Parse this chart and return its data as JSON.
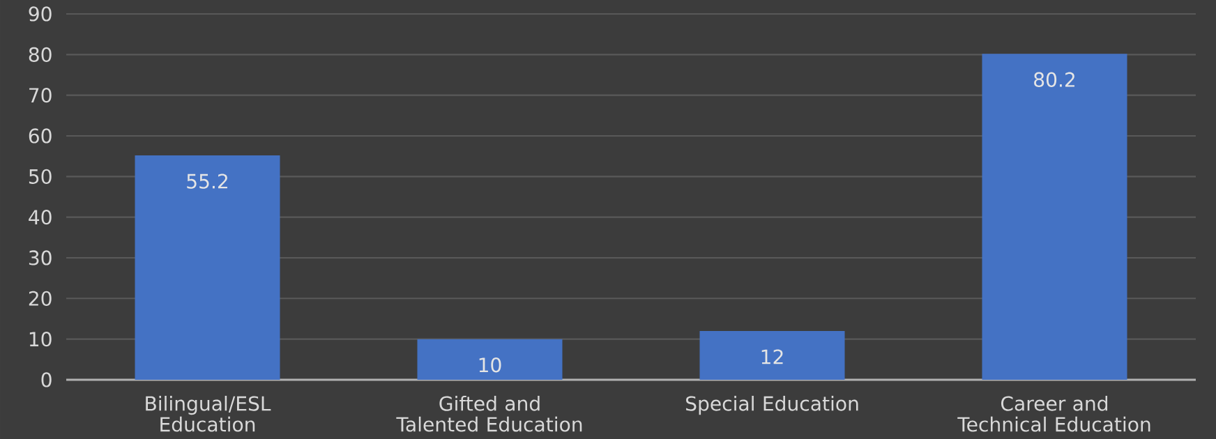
{
  "chart_data": {
    "type": "bar",
    "categories": [
      "Bilingual/ESL Education",
      "Gifted and Talented Education",
      "Special Education",
      "Career and Technical Education"
    ],
    "values": [
      55.2,
      10,
      12,
      80.2
    ],
    "color": "#4472c4",
    "ylim": [
      0,
      90
    ],
    "yticks": [
      0,
      10,
      20,
      30,
      40,
      50,
      60,
      70,
      80,
      90
    ],
    "grid": "y",
    "data_labels": true
  }
}
